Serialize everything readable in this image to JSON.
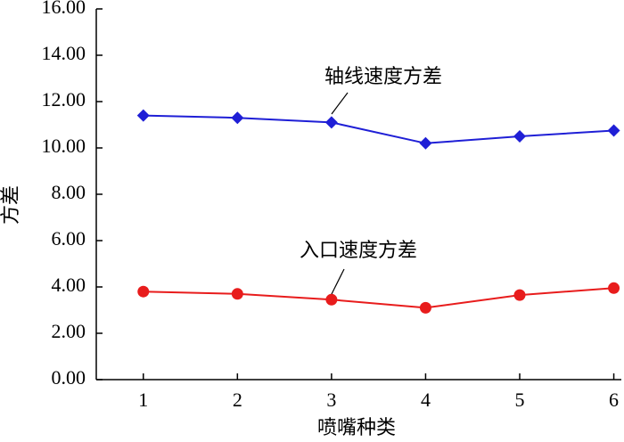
{
  "chart_data": {
    "type": "line",
    "x_label": "喷嘴种类",
    "y_label": "方差",
    "x": [
      1,
      2,
      3,
      4,
      5,
      6
    ],
    "series": [
      {
        "name": "轴线速度方差",
        "color": "#1f1fd6",
        "marker": "diamond",
        "values": [
          11.4,
          11.3,
          11.1,
          10.2,
          10.5,
          10.75
        ]
      },
      {
        "name": "入口速度方差",
        "color": "#e81c1c",
        "marker": "circle",
        "values": [
          3.8,
          3.7,
          3.45,
          3.1,
          3.65,
          3.95
        ]
      }
    ],
    "xlim": [
      0.5,
      6.08
    ],
    "xticks": [
      1,
      2,
      3,
      4,
      5,
      6
    ],
    "ylim": [
      0,
      16
    ],
    "yticks": [
      {
        "value": 0,
        "label": "0.00"
      },
      {
        "value": 2,
        "label": "2.00"
      },
      {
        "value": 4,
        "label": "4.00"
      },
      {
        "value": 6,
        "label": "6.00"
      },
      {
        "value": 8,
        "label": "8.00"
      },
      {
        "value": 10,
        "label": "10.00"
      },
      {
        "value": 12,
        "label": "12.00"
      },
      {
        "value": 14,
        "label": "14.00"
      },
      {
        "value": 16,
        "label": "16.00"
      }
    ],
    "grid": false
  }
}
